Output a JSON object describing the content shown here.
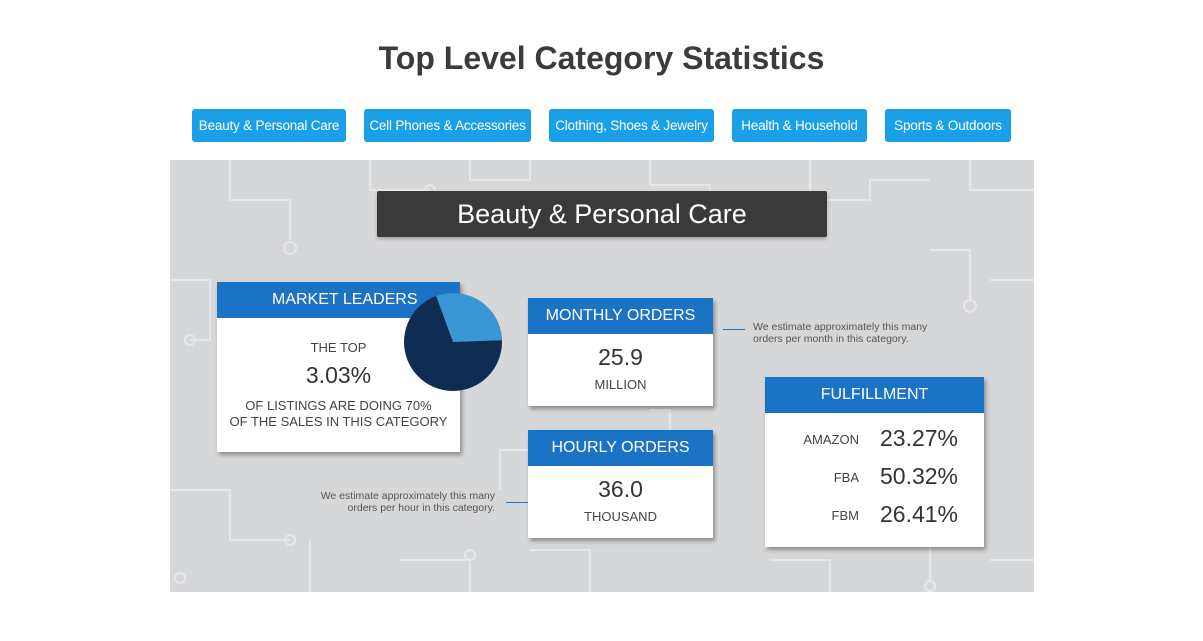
{
  "page_title": "Top Level Category Statistics",
  "tabs": [
    {
      "label": "Beauty & Personal Care"
    },
    {
      "label": "Cell Phones & Accessories"
    },
    {
      "label": "Clothing, Shoes & Jewelry"
    },
    {
      "label": "Health & Household"
    },
    {
      "label": "Sports & Outdoors"
    }
  ],
  "colors": {
    "tab_bg": "#1aa0e8",
    "card_header": "#1a73c4",
    "banner_bg": "#3a3a3b",
    "pie_dark": "#0f2d52",
    "pie_light": "#3a97d6"
  },
  "infographic": {
    "title": "Beauty & Personal Care",
    "market_leaders": {
      "header": "MARKET LEADERS",
      "line1": "THE TOP",
      "value": "3.03%",
      "line2": "OF LISTINGS ARE DOING 70%",
      "line3": "OF THE SALES IN THIS CATEGORY",
      "pie_share": 0.3
    },
    "monthly_orders": {
      "header": "MONTHLY ORDERS",
      "value": "25.9",
      "unit": "MILLION",
      "note_line1": "We estimate approximately this many",
      "note_line2": "orders per month in this category."
    },
    "hourly_orders": {
      "header": "HOURLY ORDERS",
      "value": "36.0",
      "unit": "THOUSAND",
      "note_line1": "We estimate approximately this many",
      "note_line2": "orders per hour in this category."
    },
    "fulfillment": {
      "header": "FULFILLMENT",
      "rows": [
        {
          "label": "AMAZON",
          "value": "23.27%"
        },
        {
          "label": "FBA",
          "value": "50.32%"
        },
        {
          "label": "FBM",
          "value": "26.41%"
        }
      ]
    }
  }
}
